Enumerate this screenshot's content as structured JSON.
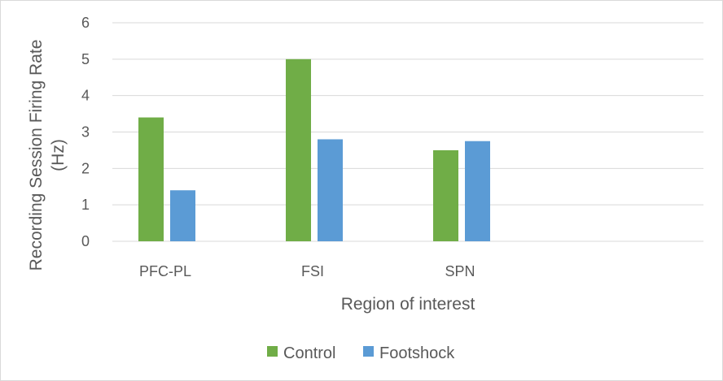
{
  "chart_data": {
    "type": "bar",
    "title": "",
    "categories": [
      "PFC-PL",
      "FSI",
      "SPN"
    ],
    "series": [
      {
        "name": "Control",
        "values": [
          3.4,
          5.0,
          2.5
        ],
        "color": "#70ad47"
      },
      {
        "name": "Footshock",
        "values": [
          1.4,
          2.8,
          2.75
        ],
        "color": "#5b9bd5"
      }
    ],
    "xlabel": "Region of interest",
    "ylabel_line1": "Recording Session Firing Rate",
    "ylabel_line2": "(Hz)",
    "ylim": [
      0,
      6
    ],
    "yticks": [
      "0",
      "1",
      "2",
      "3",
      "4",
      "5",
      "6"
    ],
    "grid": true,
    "legend_position": "bottom",
    "gridline_color": "#d9d9d9"
  }
}
